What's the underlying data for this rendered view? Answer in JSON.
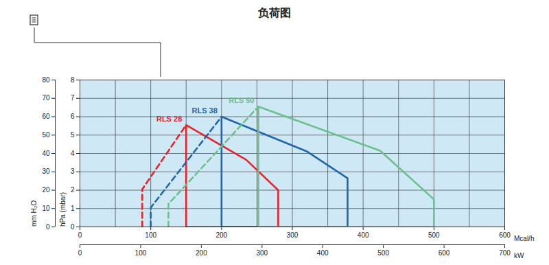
{
  "chart_data": {
    "type": "line",
    "title": "负荷图",
    "xlabel": "Mcal/h",
    "xlim": [
      0,
      600
    ],
    "xticks": [
      0,
      100,
      200,
      300,
      400,
      500,
      600
    ],
    "xgrid": [
      0,
      50,
      100,
      150,
      200,
      250,
      300,
      350,
      400,
      450,
      500,
      550,
      600
    ],
    "x2label": "kW",
    "x2lim": [
      0,
      700
    ],
    "x2ticks": [
      0,
      100,
      200,
      300,
      400,
      500,
      600,
      700
    ],
    "ylabel": "hPa (mbar)",
    "ylim": [
      0,
      8
    ],
    "yticks": [
      0,
      1,
      2,
      3,
      4,
      5,
      6,
      7,
      8
    ],
    "y2label": "mm H₂O",
    "y2lim": [
      0,
      80
    ],
    "y2ticks": [
      0,
      10,
      20,
      30,
      40,
      50,
      60,
      70,
      80
    ],
    "grid": true,
    "series": [
      {
        "name": "RLS 28",
        "color": "#e3262d",
        "parts": [
          {
            "line_style": "dashed",
            "x": [
              88,
              88,
              150
            ],
            "values": [
              0,
              2.05,
              5.55
            ]
          },
          {
            "line_style": "solid",
            "x": [
              150,
              150,
              235,
              280,
              280,
              150
            ],
            "values": [
              0,
              5.55,
              3.65,
              2.0,
              0,
              0
            ]
          }
        ]
      },
      {
        "name": "RLS 38",
        "color": "#1f66aa",
        "parts": [
          {
            "line_style": "dashed",
            "x": [
              100,
              100,
              200
            ],
            "values": [
              0,
              1.05,
              6.0
            ]
          },
          {
            "line_style": "solid",
            "x": [
              200,
              200,
              321,
              378,
              378,
              200
            ],
            "values": [
              0,
              6.0,
              4.1,
              2.65,
              0,
              0
            ]
          }
        ]
      },
      {
        "name": "RLS 50",
        "color": "#6cc08b",
        "parts": [
          {
            "line_style": "dashed",
            "x": [
              125,
              125,
              252
            ],
            "values": [
              0,
              1.25,
              6.55
            ]
          },
          {
            "line_style": "solid",
            "x": [
              252,
              252,
              424,
              500,
              500,
              252
            ],
            "values": [
              0,
              6.55,
              4.15,
              1.5,
              0,
              0
            ]
          }
        ]
      }
    ]
  }
}
